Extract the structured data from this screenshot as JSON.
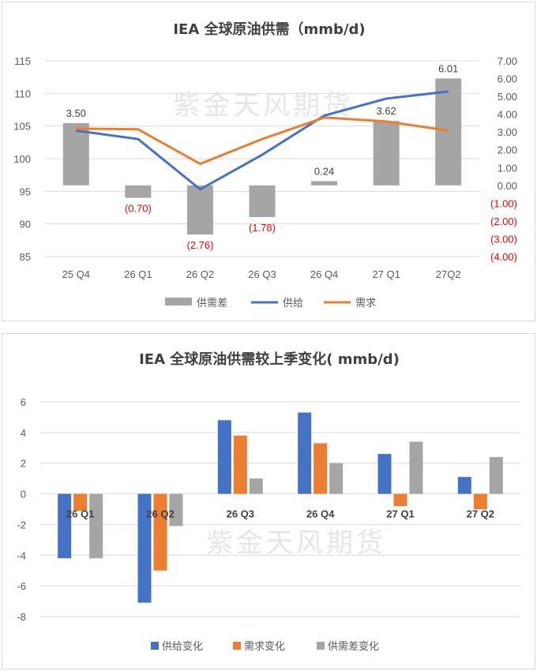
{
  "watermark": "紫金天风期货",
  "colors": {
    "gray": "#a5a5a5",
    "blue": "#4472c4",
    "orange": "#ed7d31",
    "negative_label": "#ff0000"
  },
  "chart_data": [
    {
      "type": "bar+line",
      "title": "IEA 全球原油供需（mmb/d)",
      "categories": [
        "25 Q4",
        "26 Q1",
        "26 Q2",
        "26 Q3",
        "26 Q4",
        "27 Q1",
        "27Q2"
      ],
      "ylim_left": [
        85,
        115
      ],
      "yticks_left": [
        "115",
        "110",
        "105",
        "100",
        "95",
        "90",
        "85"
      ],
      "ylim_right": [
        -4,
        7
      ],
      "yticks_right": [
        "7.00",
        "6.00",
        "5.00",
        "4.00",
        "3.00",
        "2.00",
        "1.00",
        "0.00",
        "(1.00)",
        "(2.00)",
        "(3.00)",
        "(4.00)"
      ],
      "series": [
        {
          "name": "供需差",
          "type": "bar",
          "axis": "right",
          "color": "#a5a5a5",
          "values": [
            3.5,
            -0.7,
            -2.76,
            -1.78,
            0.24,
            3.62,
            6.01
          ],
          "labels": [
            "3.50",
            "(0.70)",
            "(2.76)",
            "(1.78)",
            "0.24",
            "3.62",
            "6.01"
          ]
        },
        {
          "name": "供给",
          "type": "line",
          "axis": "left",
          "color": "#4472c4",
          "values": [
            104.3,
            103.0,
            95.3,
            100.6,
            106.6,
            109.2,
            110.3
          ]
        },
        {
          "name": "需求",
          "type": "line",
          "axis": "left",
          "color": "#ed7d31",
          "values": [
            104.6,
            104.5,
            99.2,
            103.0,
            106.3,
            105.7,
            104.3
          ]
        }
      ],
      "legend": "bottom",
      "grid": true
    },
    {
      "type": "bar",
      "title": "IEA 全球原油供需较上季变化( mmb/d)",
      "categories": [
        "26 Q1",
        "26 Q2",
        "26 Q3",
        "26 Q4",
        "27 Q1",
        "27 Q2"
      ],
      "ylim": [
        -8,
        6
      ],
      "yticks": [
        "6",
        "4",
        "2",
        "0",
        "-2",
        "-4",
        "-6",
        "-8"
      ],
      "series": [
        {
          "name": "供给变化",
          "color": "#4472c4",
          "values": [
            -4.2,
            -7.1,
            4.8,
            5.3,
            2.6,
            1.1
          ]
        },
        {
          "name": "需求变化",
          "color": "#ed7d31",
          "values": [
            -1.1,
            -5.0,
            3.8,
            3.3,
            -0.8,
            -1.0
          ]
        },
        {
          "name": "供需差变化",
          "color": "#a5a5a5",
          "values": [
            -4.2,
            -2.1,
            1.0,
            2.0,
            3.4,
            2.4
          ]
        }
      ],
      "legend": "bottom",
      "grid": true
    }
  ]
}
